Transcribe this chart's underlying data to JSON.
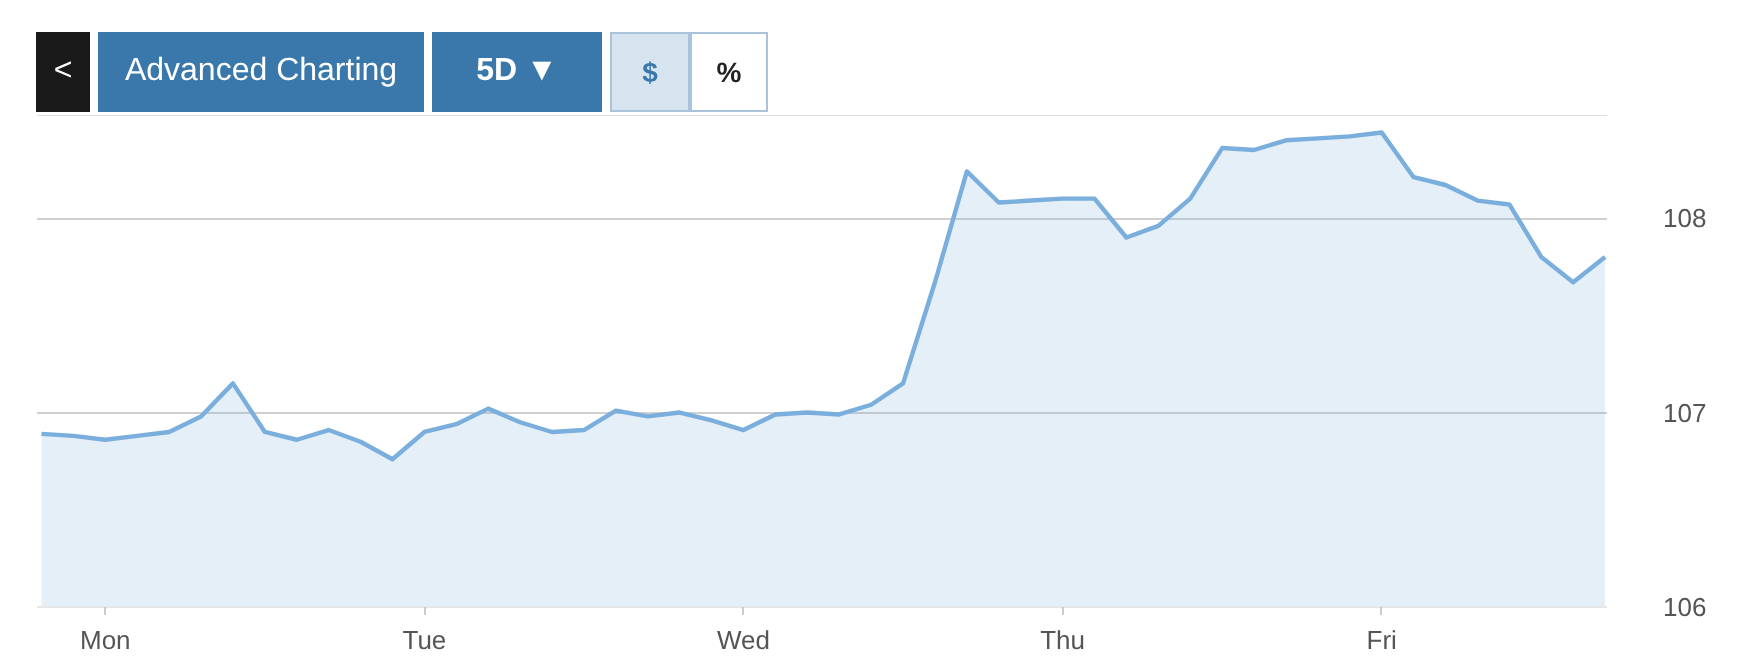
{
  "chart_data": {
    "type": "area",
    "annotations": [
      "<",
      "Advanced Charting",
      "5D ▼",
      "$",
      "%"
    ],
    "categories": [
      null,
      null,
      "Mon",
      null,
      null,
      null,
      null,
      null,
      null,
      null,
      null,
      null,
      "Tue",
      null,
      null,
      null,
      null,
      null,
      null,
      null,
      null,
      null,
      "Wed",
      null,
      null,
      null,
      null,
      null,
      null,
      null,
      null,
      null,
      "Thu",
      null,
      null,
      null,
      null,
      null,
      null,
      null,
      null,
      null,
      "Fri",
      null,
      null,
      null,
      null,
      null,
      null,
      null
    ],
    "series": [
      {
        "color": "#7aaedc",
        "values": [
          106.89,
          106.88,
          106.86,
          106.88,
          106.9,
          106.98,
          107.15,
          106.9,
          106.86,
          106.91,
          106.85,
          106.76,
          106.9,
          106.94,
          107.02,
          106.95,
          106.9,
          106.91,
          107.01,
          106.98,
          107.0,
          106.96,
          106.91,
          106.99,
          107.0,
          106.99,
          107.04,
          107.15,
          107.67,
          108.24,
          108.08,
          108.09,
          108.1,
          108.1,
          107.9,
          107.96,
          108.1,
          108.36,
          108.35,
          108.4,
          108.41,
          108.42,
          108.44,
          108.21,
          108.17,
          108.09,
          108.07,
          107.8,
          107.67,
          107.8
        ]
      }
    ],
    "ylim": [
      106,
      108.53
    ],
    "yticks": [
      106,
      107,
      108
    ],
    "grid": "y"
  }
}
